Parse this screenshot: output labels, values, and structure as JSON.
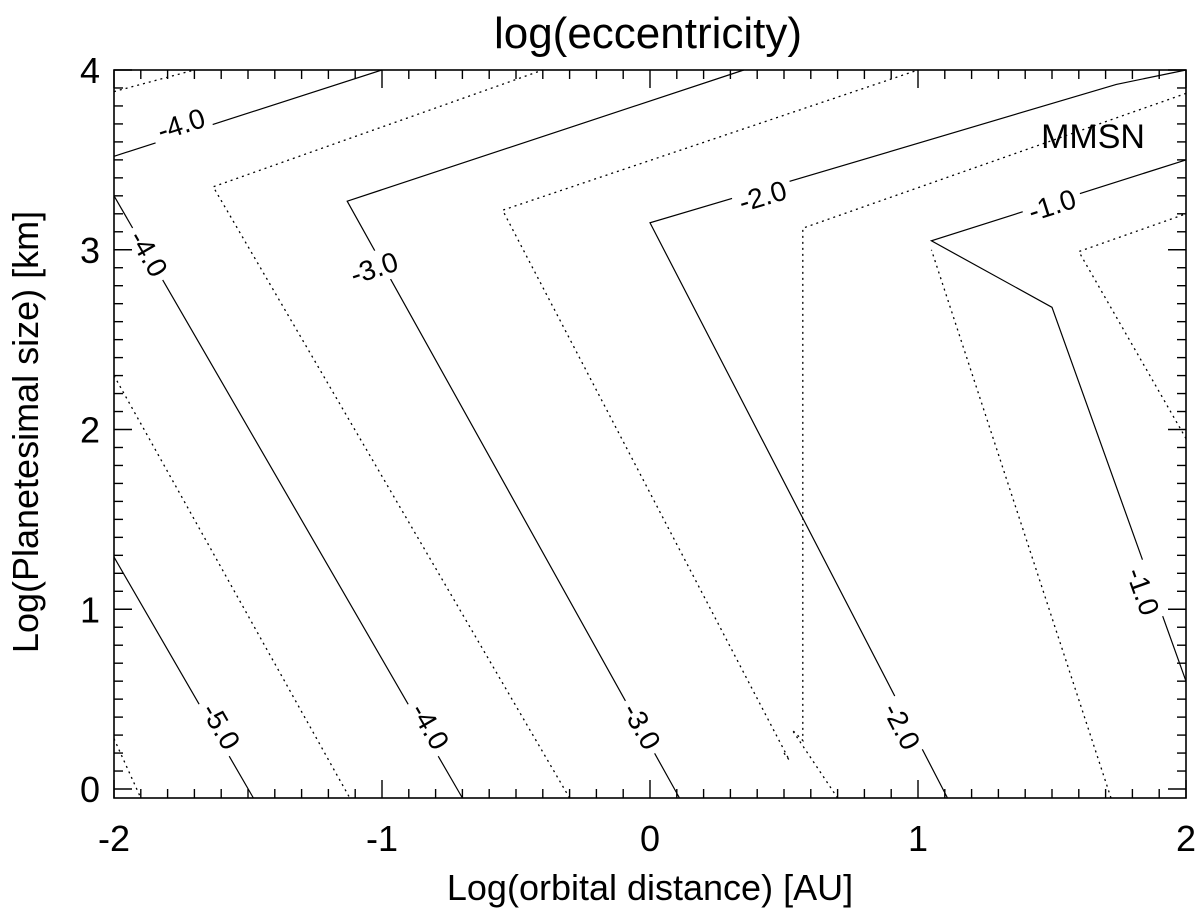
{
  "chart_data": {
    "type": "contour",
    "title": "log(eccentricity)",
    "xlabel": "Log(orbital distance) [AU]",
    "ylabel": "Log(Planetesimal size) [km]",
    "xlim": [
      -2,
      2
    ],
    "ylim": [
      -0.05,
      4
    ],
    "x_ticks": [
      -2,
      -1,
      0,
      1,
      2
    ],
    "x_tick_labels": [
      "-2",
      "-1",
      "0",
      "1",
      "2"
    ],
    "y_ticks": [
      0,
      1,
      2,
      3,
      4
    ],
    "y_tick_labels": [
      "0",
      "1",
      "2",
      "3",
      "4"
    ],
    "annotation": "MMSN",
    "grid": false,
    "contours": [
      {
        "level": -5.5,
        "style": "dotted",
        "points": [
          [
            -2.0,
            0.28
          ],
          [
            -1.9,
            -0.05
          ]
        ]
      },
      {
        "level": -5.0,
        "style": "solid",
        "points": [
          [
            -2.0,
            1.29
          ],
          [
            -1.48,
            -0.05
          ]
        ],
        "labels": [
          {
            "text": "-5.0",
            "x": -1.6,
            "y": 0.35
          }
        ]
      },
      {
        "level": -4.5,
        "style": "dotted",
        "points": [
          [
            -2.0,
            2.3
          ],
          [
            -1.12,
            -0.05
          ]
        ]
      },
      {
        "level": -4.0,
        "style": "solid",
        "points": [
          [
            -2.0,
            3.3
          ],
          [
            -0.7,
            -0.05
          ]
        ],
        "labels": [
          {
            "text": "-4.0",
            "x": -1.87,
            "y": 2.98
          },
          {
            "text": "-4.0",
            "x": -0.82,
            "y": 0.35
          }
        ]
      },
      {
        "level": -4.0,
        "style": "solid",
        "points": [
          [
            -2.0,
            3.52
          ],
          [
            -1.0,
            4.0
          ]
        ],
        "labels": [
          {
            "text": "-4.0",
            "x": -1.75,
            "y": 3.7
          }
        ]
      },
      {
        "level": -3.5,
        "style": "dotted",
        "points": [
          [
            -2.0,
            3.88
          ],
          [
            -1.7,
            4.0
          ]
        ]
      },
      {
        "level": -3.5,
        "style": "dotted",
        "points": [
          [
            -0.3,
            -0.05
          ],
          [
            -1.63,
            3.35
          ],
          [
            -0.4,
            4.0
          ]
        ]
      },
      {
        "level": -3.0,
        "style": "solid",
        "points": [
          [
            0.11,
            -0.05
          ],
          [
            -1.13,
            3.27
          ],
          [
            0.35,
            4.0
          ]
        ],
        "labels": [
          {
            "text": "-3.0",
            "x": -1.03,
            "y": 2.9
          },
          {
            "text": "-3.0",
            "x": -0.03,
            "y": 0.35
          }
        ]
      },
      {
        "level": -2.5,
        "style": "dotted",
        "points": [
          [
            0.5,
            0.2
          ],
          [
            0.52,
            0.16
          ],
          [
            -0.55,
            3.22
          ],
          [
            1.0,
            4.0
          ]
        ]
      },
      {
        "level": -2.0,
        "style": "solid",
        "points": [
          [
            1.11,
            -0.05
          ],
          [
            0.0,
            3.15
          ],
          [
            1.74,
            3.92
          ],
          [
            2.0,
            4.0
          ]
        ],
        "labels": [
          {
            "text": "-2.0",
            "x": 0.94,
            "y": 0.35
          },
          {
            "text": "-2.0",
            "x": 0.42,
            "y": 3.3
          }
        ]
      },
      {
        "level": -1.5,
        "style": "dotted",
        "points": [
          [
            0.7,
            -0.05
          ],
          [
            0.53,
            0.33
          ],
          [
            0.57,
            0.27
          ],
          [
            0.57,
            3.12
          ],
          [
            2.0,
            3.87
          ]
        ]
      },
      {
        "level": -1.5,
        "style": "dotted",
        "points": [
          [
            1.72,
            -0.05
          ],
          [
            1.05,
            3.0
          ]
        ]
      },
      {
        "level": -1.0,
        "style": "solid",
        "points": [
          [
            2.0,
            0.6
          ],
          [
            1.5,
            2.68
          ],
          [
            1.05,
            3.05
          ],
          [
            2.0,
            3.5
          ]
        ],
        "labels": [
          {
            "text": "-1.0",
            "x": 1.84,
            "y": 1.1
          },
          {
            "text": "-1.0",
            "x": 1.5,
            "y": 3.25
          }
        ]
      },
      {
        "level": -0.5,
        "style": "dotted",
        "points": [
          [
            2.0,
            1.95
          ],
          [
            1.6,
            2.99
          ],
          [
            2.0,
            3.2
          ]
        ]
      }
    ]
  }
}
